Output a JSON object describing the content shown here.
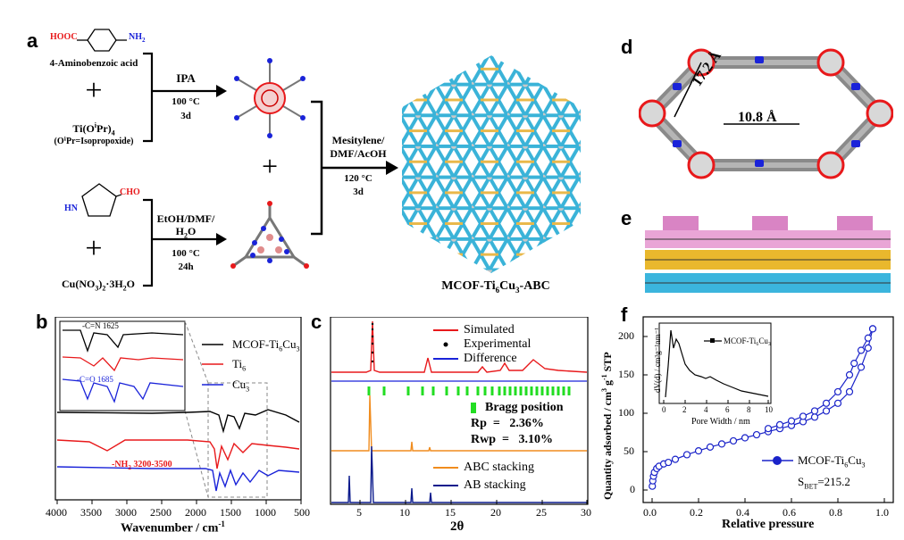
{
  "panel_a": {
    "label": "a",
    "reactant1_cooh": "HOOC",
    "reactant1_nh2": "NH",
    "reactant1_nh2_sub": "2",
    "reactant1_name": "4-Aminobenzoic acid",
    "plus": "+",
    "reactant2_name_pre": "Ti(O",
    "reactant2_name_sup": "i",
    "reactant2_name_mid": "Pr)",
    "reactant2_name_sub": "4",
    "reactant2_note": "(OⁱPr=Isopropoxide)",
    "cond1_solvent": "IPA",
    "cond1_temp": "100 °C",
    "cond1_time": "3d",
    "pyrazole_nh": "HN",
    "pyrazole_cho": "CHO",
    "reactant4_pre": "Cu(NO",
    "reactant4_sub1": "3",
    "reactant4_mid": ")",
    "reactant4_sub2": "2",
    "reactant4_post": "·3H",
    "reactant4_sub3": "2",
    "reactant4_end": "O",
    "cond2_solvent1": "EtOH/DMF/",
    "cond2_solvent2_pre": "H",
    "cond2_solvent2_sub": "2",
    "cond2_solvent2_post": "O",
    "cond2_temp": "100 °C",
    "cond2_time": "24h",
    "cond3_line1": "Mesitylene/",
    "cond3_line2": "DMF/AcOH",
    "cond3_temp": "120 °C",
    "cond3_time": "3d",
    "product_pre": "MCOF-Ti",
    "product_sub1": "6",
    "product_mid": "Cu",
    "product_sub2": "3",
    "product_post": "-ABC"
  },
  "panel_b": {
    "label": "b",
    "xlabel": "Wavenumber / cm",
    "xlabel_sup": "-1",
    "xticks": [
      "4000",
      "3500",
      "3000",
      "2500",
      "2000",
      "1500",
      "1000",
      "500"
    ],
    "legend": [
      {
        "name": "MCOF-Ti",
        "sub": "6",
        "name2": "Cu",
        "sub2": "3",
        "color": "#000000"
      },
      {
        "name": "Ti",
        "sub": "6",
        "name2": "",
        "sub2": "",
        "color": "#e8191b"
      },
      {
        "name": "Cu",
        "sub": "3",
        "name2": "",
        "sub2": "",
        "color": "#1a23d9"
      }
    ],
    "annot_cn": "-C=N 1625",
    "annot_co": "-C=O 1685",
    "annot_nh": "-NH",
    "annot_nh_sub": "2",
    "annot_nh_range": " 3200-3500"
  },
  "panel_c": {
    "label": "c",
    "xlabel": "2θ",
    "xticks": [
      "5",
      "10",
      "15",
      "20",
      "25",
      "30"
    ],
    "legend_top": [
      {
        "name": "Simulated",
        "color": "#e8191b"
      },
      {
        "name": "Experimental",
        "color": "#000000"
      },
      {
        "name": "Difference",
        "color": "#1a23d9"
      }
    ],
    "bragg": "Bragg position",
    "rp": "Rp  =   2.36%",
    "rwp": "Rwp  =   3.10%",
    "legend_bottom": [
      {
        "name": "ABC stacking",
        "color": "#f08c1e"
      },
      {
        "name": "AB stacking",
        "color": "#0a1a8c"
      }
    ],
    "colors": {
      "bragg": "#22dd22"
    }
  },
  "panel_d": {
    "label": "d",
    "dim1": "17.2 Å",
    "dim2": "10.8 Å"
  },
  "panel_e": {
    "label": "e"
  },
  "panel_f": {
    "label": "f",
    "xlabel": "Relative pressure",
    "ylabel_pre": "Quantity adsorbed / cm",
    "ylabel_sup1": "3",
    "ylabel_mid": " g",
    "ylabel_sup2": "-1",
    "ylabel_post": " STP",
    "legend_pre": "MCOF-Ti",
    "legend_sub1": "6",
    "legend_mid": "Cu",
    "legend_sub2": "3",
    "sbet_pre": "S",
    "sbet_sub": "BET",
    "sbet_post": "=215.2",
    "inset_xlabel": "Pore Width / nm",
    "inset_ylabel": "dV(d) / cm³g⁻¹nm⁻¹",
    "inset_legend": "MCOF-Ti₆Cu₃",
    "colors": {
      "series": "#1a23c9"
    }
  },
  "chart_data": [
    {
      "type": "line",
      "panel": "b",
      "xlabel": "Wavenumber / cm-1",
      "xlim": [
        4000,
        500
      ],
      "series": [
        {
          "name": "MCOF-Ti6Cu3"
        },
        {
          "name": "Ti6"
        },
        {
          "name": "Cu3"
        }
      ],
      "annotations": [
        "-C=N 1625",
        "-C=O 1685",
        "-NH2 3200-3500"
      ]
    },
    {
      "type": "line",
      "panel": "c",
      "xlabel": "2θ",
      "xlim": [
        1,
        30
      ],
      "series": [
        {
          "name": "Simulated",
          "peaks": [
            6.0,
            12.2,
            18.3,
            20.5,
            25.5
          ]
        },
        {
          "name": "Experimental"
        },
        {
          "name": "Difference"
        },
        {
          "name": "ABC stacking",
          "peaks": [
            6.0,
            10.4,
            12.1,
            13.0
          ]
        },
        {
          "name": "AB stacking",
          "peaks": [
            3.5,
            6.1,
            10.5,
            12.2
          ]
        }
      ],
      "Rp": "2.36%",
      "Rwp": "3.10%"
    },
    {
      "type": "scatter",
      "panel": "f",
      "xlabel": "Relative pressure",
      "ylabel": "Quantity adsorbed / cm3 g-1 STP",
      "xlim": [
        0,
        1.0
      ],
      "ylim": [
        0,
        200
      ],
      "series": [
        {
          "name": "MCOF-Ti6Cu3",
          "x": [
            0.001,
            0.003,
            0.006,
            0.01,
            0.02,
            0.03,
            0.05,
            0.07,
            0.1,
            0.15,
            0.2,
            0.25,
            0.3,
            0.35,
            0.4,
            0.45,
            0.5,
            0.55,
            0.6,
            0.65,
            0.7,
            0.75,
            0.8,
            0.85,
            0.9,
            0.93,
            0.95
          ],
          "y": [
            5,
            12,
            18,
            23,
            28,
            31,
            34,
            36,
            40,
            46,
            51,
            56,
            60,
            64,
            68,
            72,
            76,
            80,
            84,
            89,
            95,
            103,
            113,
            128,
            160,
            185,
            210
          ]
        },
        {
          "name": "desorption",
          "x": [
            0.95,
            0.93,
            0.9,
            0.87,
            0.85,
            0.8,
            0.75,
            0.7,
            0.65,
            0.6,
            0.55,
            0.5
          ],
          "y": [
            210,
            198,
            182,
            165,
            150,
            128,
            113,
            103,
            96,
            90,
            85,
            80
          ]
        }
      ],
      "S_BET": 215.2
    },
    {
      "type": "line",
      "panel": "f-inset",
      "xlabel": "Pore Width / nm",
      "xlim": [
        0,
        10
      ],
      "ylim": [
        0,
        0.25
      ],
      "series": [
        {
          "name": "MCOF-Ti6Cu3",
          "x": [
            0.5,
            0.8,
            1.0,
            1.2,
            1.4,
            1.6,
            1.8,
            2.0,
            2.3,
            2.6,
            3.0,
            3.5,
            4.0,
            4.5,
            5.0,
            5.5,
            6.0,
            6.5,
            7.0,
            7.5,
            8.0,
            8.5,
            9.0,
            9.5,
            10.0
          ],
          "y": [
            0.02,
            0.15,
            0.21,
            0.17,
            0.19,
            0.18,
            0.15,
            0.12,
            0.1,
            0.08,
            0.07,
            0.06,
            0.07,
            0.06,
            0.06,
            0.055,
            0.05,
            0.045,
            0.04,
            0.035,
            0.03,
            0.03,
            0.025,
            0.025,
            0.02
          ]
        }
      ]
    }
  ]
}
